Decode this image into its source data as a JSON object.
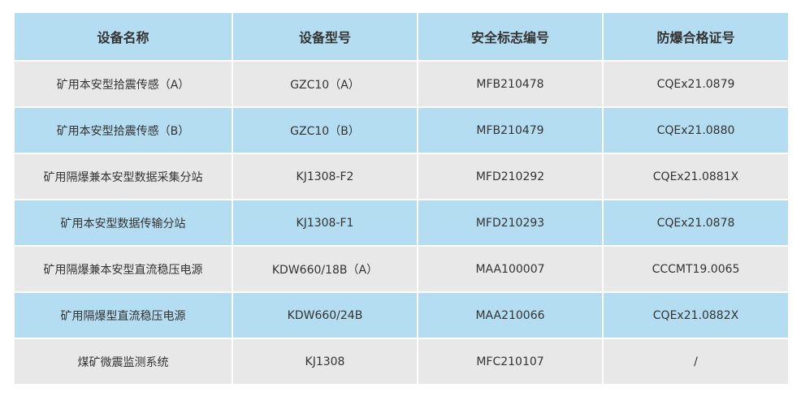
{
  "table": {
    "headers": [
      "设备名称",
      "设备型号",
      "安全标志编号",
      "防爆合格证号"
    ],
    "rows": [
      [
        "矿用本安型拾震传感（A）",
        "GZC10（A）",
        "MFB210478",
        "CQEx21.0879"
      ],
      [
        "矿用本安型拾震传感（B）",
        "GZC10（B）",
        "MFB210479",
        "CQEx21.0880"
      ],
      [
        "矿用隔爆兼本安型数据采集分站",
        "KJ1308-F2",
        "MFD210292",
        "CQEx21.0881X"
      ],
      [
        "矿用本安型数据传输分站",
        "KJ1308-F1",
        "MFD210293",
        "CQEx21.0878"
      ],
      [
        "矿用隔爆兼本安型直流稳压电源",
        "KDW660/18B（A）",
        "MAA100007",
        "CCCMT19.0065"
      ],
      [
        "矿用隔爆型直流稳压电源",
        "KDW660/24B",
        "MAA210066",
        "CQEx21.0882X"
      ],
      [
        "煤矿微震监测系统",
        "KJ1308",
        "MFC210107",
        "/"
      ]
    ]
  },
  "colors": {
    "header_bg": "#b5ddf1",
    "row_blue": "#b5ddf1",
    "row_gray": "#e8e8e8"
  }
}
